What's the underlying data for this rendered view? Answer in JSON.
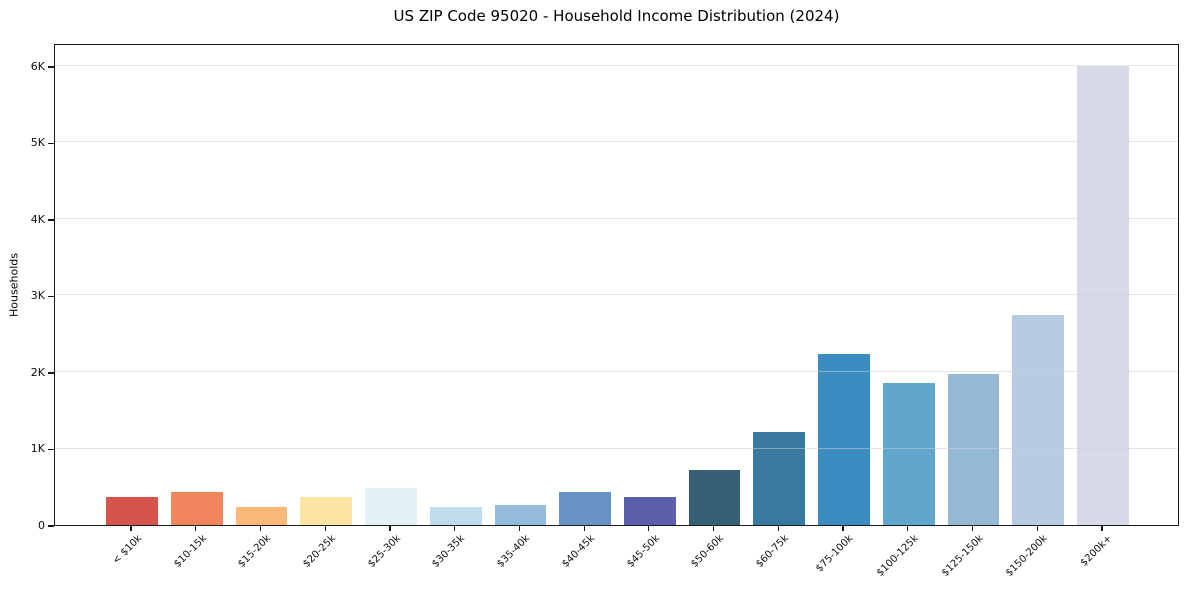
{
  "chart_data": {
    "type": "bar",
    "title": "US ZIP Code 95020 - Household Income Distribution (2024)",
    "xlabel": "",
    "ylabel": "Households",
    "categories": [
      "< $10k",
      "$10-15k",
      "$15-20k",
      "$20-25k",
      "$25-30k",
      "$30-35k",
      "$35-40k",
      "$40-45k",
      "$45-50k",
      "$50-60k",
      "$60-75k",
      "$75-100k",
      "$100-125k",
      "$125-150k",
      "$150-200k",
      "$200k+"
    ],
    "values": [
      360,
      430,
      230,
      360,
      480,
      240,
      260,
      430,
      360,
      725,
      1215,
      2240,
      1860,
      1970,
      2750,
      6000
    ],
    "bar_colors": [
      "#d6544e",
      "#f0845c",
      "#fab97a",
      "#fce5a2",
      "#e4f1f7",
      "#bfdcec",
      "#94bbdc",
      "#6b92c5",
      "#5c5fa9",
      "#375f73",
      "#38799f",
      "#3c8dbf",
      "#61a7cd",
      "#93b9d7",
      "#b7cbe2",
      "#d8d9e6"
    ],
    "ylim": [
      0,
      6300
    ],
    "ytick_values": [
      0,
      1000,
      2000,
      3000,
      4000,
      5000,
      6000
    ],
    "ytick_labels": [
      "0",
      "1K",
      "2K",
      "3K",
      "4K",
      "5K",
      "6K"
    ],
    "grid": "horizontal-light",
    "legend": "none",
    "background_color": "#ffffff",
    "spine_color": "#1a1a1a"
  }
}
